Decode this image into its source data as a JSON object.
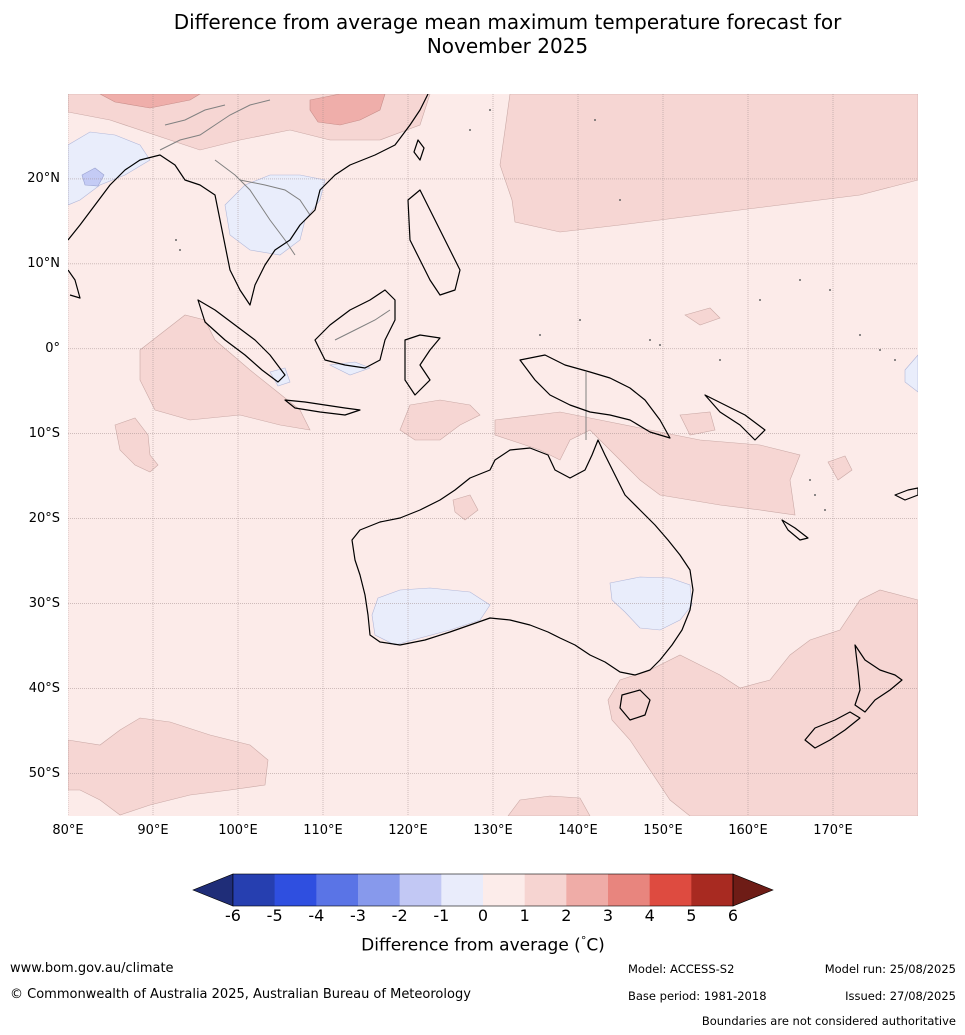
{
  "title": {
    "line1": "Difference from average mean maximum temperature forecast for",
    "line2": "November 2025"
  },
  "map": {
    "lat_ticks": [
      "20°N",
      "10°N",
      "0°",
      "10°S",
      "20°S",
      "30°S",
      "40°S",
      "50°S"
    ],
    "lat_values": [
      20,
      10,
      0,
      -10,
      -20,
      -30,
      -40,
      -50
    ],
    "lon_ticks": [
      "80°E",
      "90°E",
      "100°E",
      "110°E",
      "120°E",
      "130°E",
      "140°E",
      "150°E",
      "160°E",
      "170°E"
    ],
    "lon_values": [
      80,
      90,
      100,
      110,
      120,
      130,
      140,
      150,
      160,
      170
    ],
    "lon_range": [
      80,
      180
    ],
    "lat_range": [
      -55,
      30
    ],
    "colors": {
      "ocean_base": "#fcebe9",
      "warm_1_2": "#f6d6d3",
      "warm_2_3": "#efaeaa",
      "cool_0_m1": "#e9edfb",
      "cool_m1_m2": "#c4cbf5",
      "coastline": "#000000",
      "borders": "#808080",
      "grid": "#a08c8c"
    }
  },
  "colorbar": {
    "ticks": [
      "-6",
      "-5",
      "-4",
      "-3",
      "-2",
      "-1",
      "0",
      "1",
      "2",
      "3",
      "4",
      "5",
      "6"
    ],
    "colors": [
      "#1f2d78",
      "#263fb0",
      "#2f4fe0",
      "#5a74e6",
      "#8799ec",
      "#c2c8f4",
      "#e9ecfb",
      "#fcecea",
      "#f6d4d1",
      "#efaca7",
      "#e8857e",
      "#de4b40",
      "#a82a21",
      "#6e1c16"
    ],
    "label": "Difference from average (°C)",
    "label_prefix": "Difference from average (",
    "label_unit": "C)",
    "label_deg": "°"
  },
  "footer": {
    "website": "www.bom.gov.au/climate",
    "copyright": "© Commonwealth of Australia 2025, Australian Bureau of Meteorology",
    "model": "Model: ACCESS-S2",
    "base_period": "Base period: 1981-2018",
    "model_run": "Model run: 25/08/2025",
    "issued": "Issued: 27/08/2025",
    "disclaimer": "Boundaries are not considered authoritative"
  }
}
